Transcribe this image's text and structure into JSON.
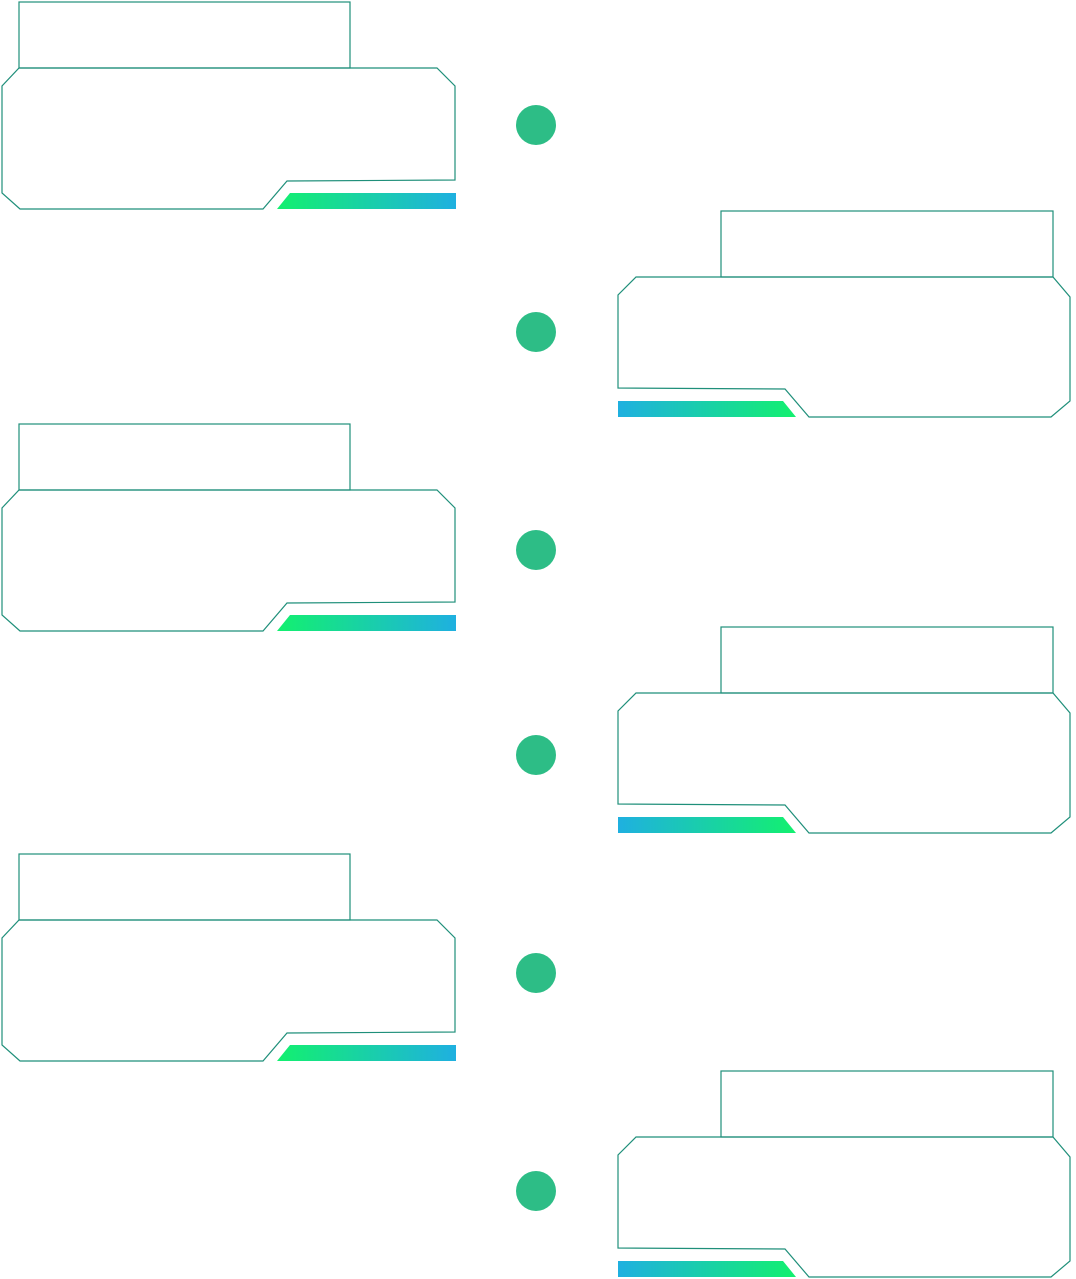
{
  "colors": {
    "outline": "#1f8f7a",
    "outline_accent": "#2aa86a",
    "dot": "#2dbd86",
    "gradient_green": "#13f06f",
    "gradient_blue": "#1fb0e0"
  },
  "timeline": {
    "dots": [
      {
        "name": "timeline-dot-1"
      },
      {
        "name": "timeline-dot-2"
      },
      {
        "name": "timeline-dot-3"
      },
      {
        "name": "timeline-dot-4"
      },
      {
        "name": "timeline-dot-5"
      },
      {
        "name": "timeline-dot-6"
      }
    ],
    "cards": [
      {
        "side": "left",
        "title": "",
        "body": ""
      },
      {
        "side": "right",
        "title": "",
        "body": ""
      },
      {
        "side": "left",
        "title": "",
        "body": ""
      },
      {
        "side": "right",
        "title": "",
        "body": ""
      },
      {
        "side": "left",
        "title": "",
        "body": ""
      },
      {
        "side": "right",
        "title": "",
        "body": ""
      }
    ]
  }
}
